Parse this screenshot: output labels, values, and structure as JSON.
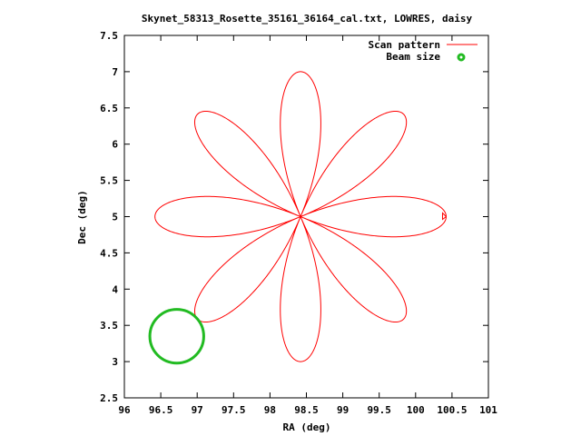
{
  "chart_data": {
    "type": "scatter",
    "title": "Skynet_58313_Rosette_35161_36164_cal.txt, LOWRES, daisy",
    "xlabel": "RA (deg)",
    "ylabel": "Dec (deg)",
    "xlim": [
      96,
      101
    ],
    "ylim": [
      2.5,
      7.5
    ],
    "x_ticks": [
      "96",
      "96.5",
      "97",
      "97.5",
      "98",
      "98.5",
      "99",
      "99.5",
      "100",
      "100.5",
      "101"
    ],
    "y_ticks": [
      "2.5",
      "3",
      "3.5",
      "4",
      "4.5",
      "5",
      "5.5",
      "6",
      "6.5",
      "7",
      "7.5"
    ],
    "legend_position": "top-right",
    "series": [
      {
        "name": "Scan pattern",
        "color": "#ff0000",
        "style": "line",
        "pattern": "daisy",
        "center": [
          98.42,
          5.0
        ],
        "radius_deg": 2.0,
        "petals": 8,
        "petal_angles_deg": [
          0,
          45,
          90,
          135,
          180,
          225,
          270,
          315
        ],
        "extent_x": [
          96.35,
          100.55
        ],
        "extent_y": [
          3.0,
          7.0
        ]
      },
      {
        "name": "Beam size",
        "color": "#22bb22",
        "style": "circle",
        "center": [
          96.72,
          3.35
        ],
        "radius_deg": 0.37
      }
    ]
  }
}
